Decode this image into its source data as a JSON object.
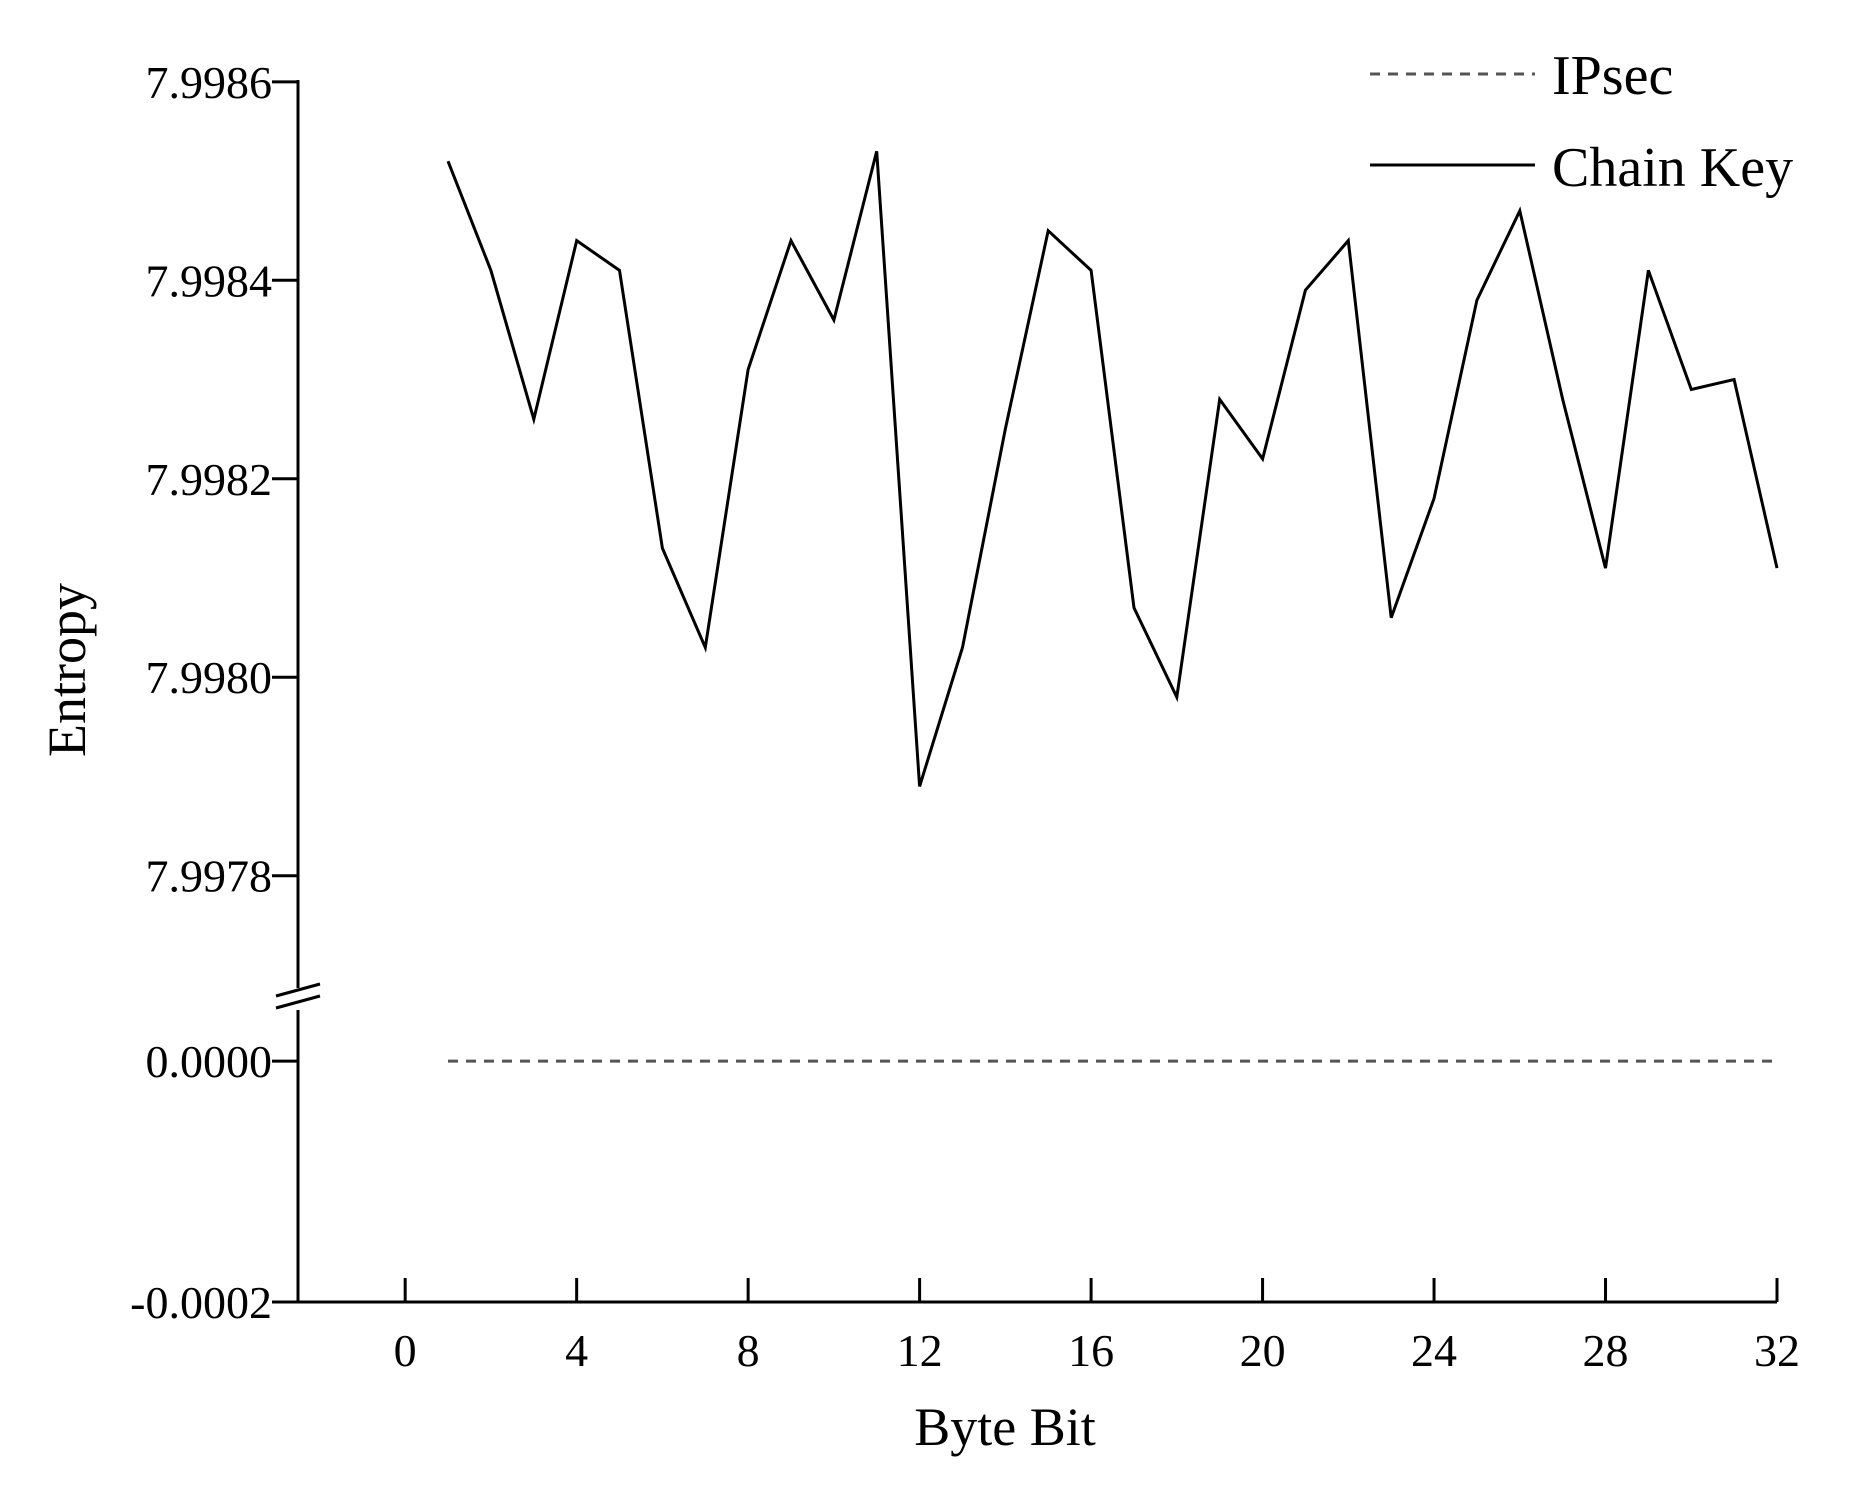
{
  "chart_data": {
    "type": "line",
    "title": "",
    "xlabel": "Byte Bit",
    "ylabel": "Entropy",
    "xlim": [
      -2.5,
      32
    ],
    "x_ticks": [
      "0",
      "4",
      "8",
      "12",
      "16",
      "20",
      "24",
      "28",
      "32"
    ],
    "y_axis_break": true,
    "y_ticks_upper": [
      "7.9978",
      "7.9980",
      "7.9982",
      "7.9984",
      "7.9986"
    ],
    "y_ticks_lower": [
      "-0.0002",
      "0.0000"
    ],
    "ylim_upper": [
      7.99771,
      7.99862
    ],
    "ylim_lower": [
      -0.0002,
      3e-05
    ],
    "grid": false,
    "legend_position": "top-right",
    "series": [
      {
        "name": "IPsec",
        "style": "dashed",
        "color": "#555555",
        "x": [
          1,
          2,
          3,
          4,
          5,
          6,
          7,
          8,
          9,
          10,
          11,
          12,
          13,
          14,
          15,
          16,
          17,
          18,
          19,
          20,
          21,
          22,
          23,
          24,
          25,
          26,
          27,
          28,
          29,
          30,
          31,
          32
        ],
        "values": [
          0,
          0,
          0,
          0,
          0,
          0,
          0,
          0,
          0,
          0,
          0,
          0,
          0,
          0,
          0,
          0,
          0,
          0,
          0,
          0,
          0,
          0,
          0,
          0,
          0,
          0,
          0,
          0,
          0,
          0,
          0,
          0
        ]
      },
      {
        "name": "Chain Key",
        "style": "solid",
        "color": "#000000",
        "x": [
          1,
          2,
          3,
          4,
          5,
          6,
          7,
          8,
          9,
          10,
          11,
          12,
          13,
          14,
          15,
          16,
          17,
          18,
          19,
          20,
          21,
          22,
          23,
          24,
          25,
          26,
          27,
          28,
          29,
          30,
          31,
          32
        ],
        "values": [
          7.99852,
          7.99841,
          7.99826,
          7.99844,
          7.99841,
          7.99813,
          7.99803,
          7.99831,
          7.99844,
          7.99836,
          7.99853,
          7.99789,
          7.99803,
          7.99825,
          7.99845,
          7.99841,
          7.99807,
          7.99798,
          7.99828,
          7.99822,
          7.99839,
          7.99844,
          7.99806,
          7.99818,
          7.99838,
          7.99847,
          7.99828,
          7.99811,
          7.99841,
          7.99829,
          7.9983,
          7.99811
        ]
      }
    ]
  }
}
